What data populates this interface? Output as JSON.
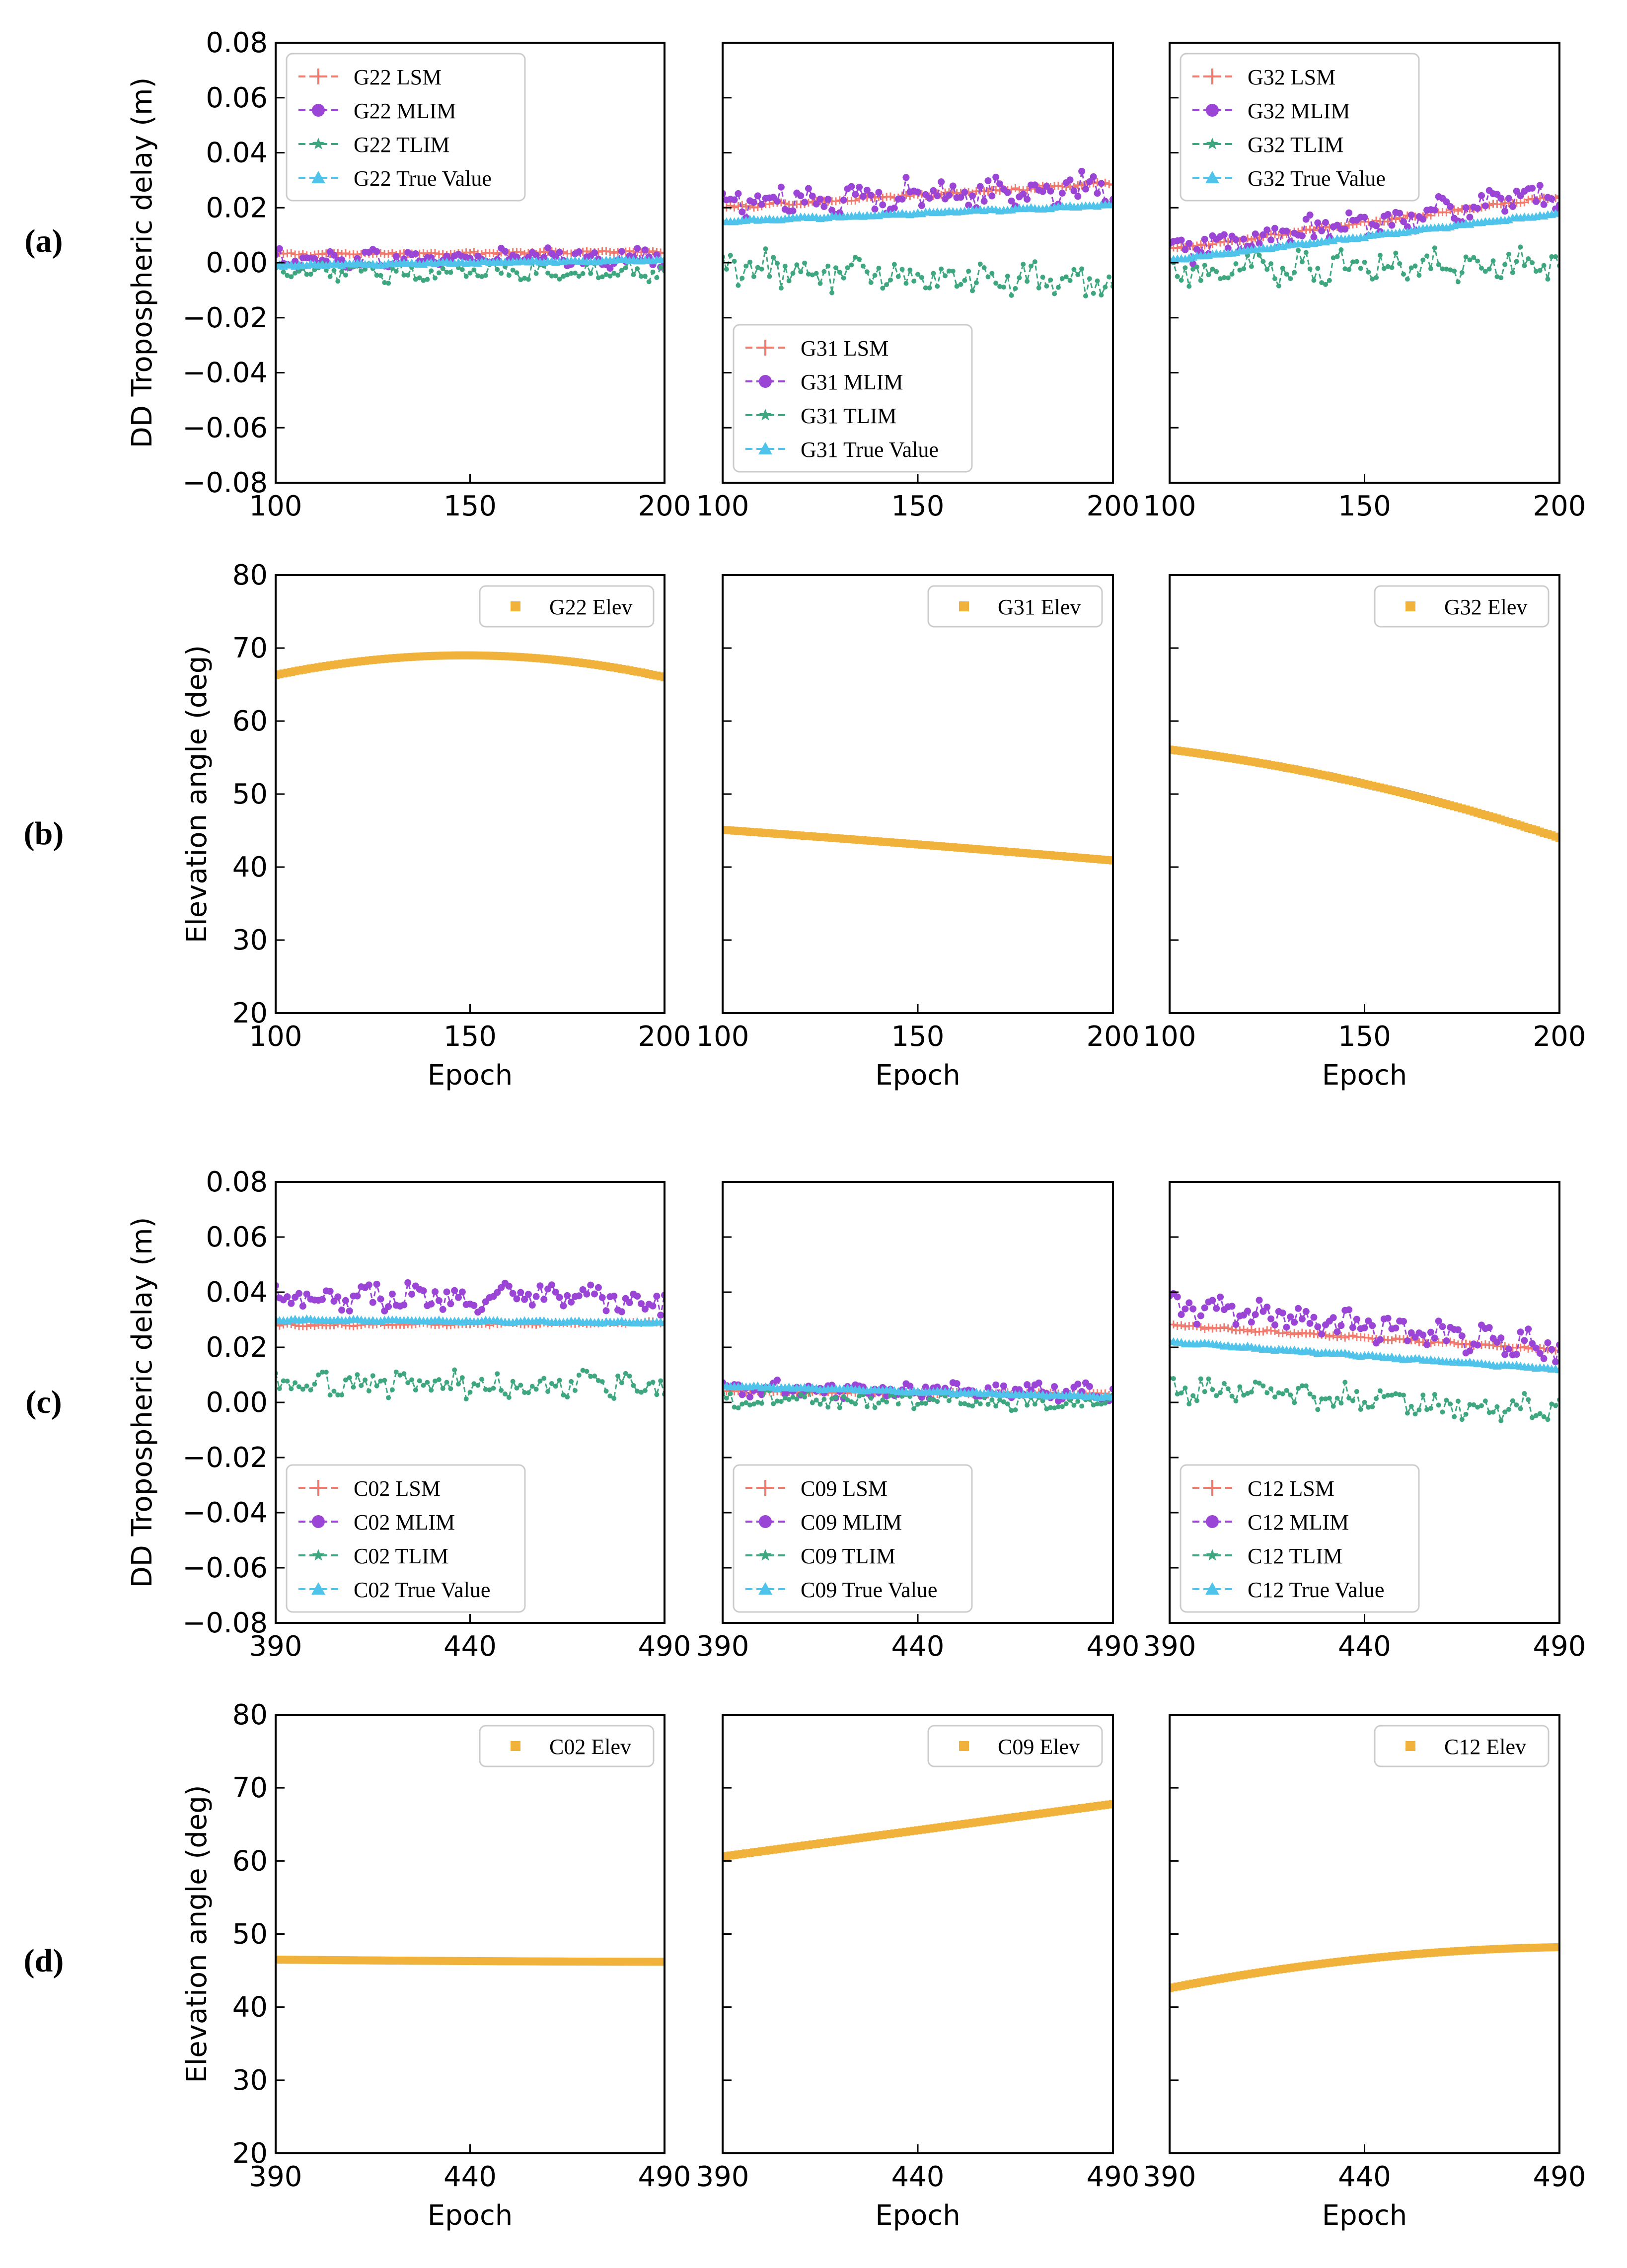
{
  "panel_labels": [
    "(a)",
    "(b)",
    "(c)",
    "(d)"
  ],
  "colors": {
    "LSM": "#f07a6e",
    "MLIM": "#9b45d6",
    "TLIM": "#3fa77f",
    "TRUE": "#4fc3ea",
    "ELEV": "#f0b23a"
  },
  "axes_text": {
    "ylabel_delay": "DD Tropospheric delay (m)",
    "ylabel_elev": "Elevation angle (deg)",
    "xlabel": "Epoch"
  },
  "chart_data": [
    {
      "id": "G22-delay",
      "type": "line",
      "row": "a",
      "col": 0,
      "xlim": [
        100,
        200
      ],
      "ylim": [
        -0.08,
        0.08
      ],
      "xticks": [
        "100",
        "150",
        "200"
      ],
      "yticks": [
        "−0.08",
        "−0.06",
        "−0.04",
        "−0.02",
        "0.00",
        "0.02",
        "0.04",
        "0.06",
        "0.08"
      ],
      "legend_loc": "upper-left",
      "series": [
        {
          "name": "G22 LSM",
          "key": "LSM",
          "start": 0.003,
          "end": 0.004,
          "noise": 0.0004
        },
        {
          "name": "G22 MLIM",
          "key": "MLIM",
          "start": 0.001,
          "end": 0.002,
          "noise": 0.0028
        },
        {
          "name": "G22 TLIM",
          "key": "TLIM",
          "start": -0.004,
          "end": -0.003,
          "noise": 0.0028
        },
        {
          "name": "G22 True Value",
          "key": "TRUE",
          "start": -0.001,
          "end": 0.001,
          "noise": 0.0003
        }
      ]
    },
    {
      "id": "G31-delay",
      "type": "line",
      "row": "a",
      "col": 1,
      "xlim": [
        100,
        200
      ],
      "ylim": [
        -0.08,
        0.08
      ],
      "xticks": [
        "100",
        "150",
        "200"
      ],
      "legend_loc": "lower-left",
      "series": [
        {
          "name": "G31 LSM",
          "key": "LSM",
          "start": 0.02,
          "end": 0.029,
          "noise": 0.0005
        },
        {
          "name": "G31 MLIM",
          "key": "MLIM",
          "start": 0.022,
          "end": 0.027,
          "noise": 0.0045
        },
        {
          "name": "G31 TLIM",
          "key": "TLIM",
          "start": -0.002,
          "end": -0.008,
          "noise": 0.0055
        },
        {
          "name": "G31 True Value",
          "key": "TRUE",
          "start": 0.015,
          "end": 0.021,
          "noise": 0.0003
        }
      ]
    },
    {
      "id": "G32-delay",
      "type": "line",
      "row": "a",
      "col": 2,
      "xlim": [
        100,
        200
      ],
      "ylim": [
        -0.08,
        0.08
      ],
      "xticks": [
        "100",
        "150",
        "200"
      ],
      "legend_loc": "upper-left",
      "series": [
        {
          "name": "G32 LSM",
          "key": "LSM",
          "start": 0.005,
          "end": 0.024,
          "noise": 0.0005
        },
        {
          "name": "G32 MLIM",
          "key": "MLIM",
          "start": 0.004,
          "end": 0.025,
          "noise": 0.004
        },
        {
          "name": "G32 TLIM",
          "key": "TLIM",
          "start": -0.003,
          "end": 0.0,
          "noise": 0.0045
        },
        {
          "name": "G32 True Value",
          "key": "TRUE",
          "start": 0.001,
          "end": 0.018,
          "noise": 0.0003
        }
      ]
    },
    {
      "id": "G22-elev",
      "type": "scatter",
      "row": "b",
      "col": 0,
      "xlim": [
        100,
        200
      ],
      "ylim": [
        20,
        80
      ],
      "xticks": [
        "100",
        "150",
        "200"
      ],
      "yticks": [
        "20",
        "30",
        "40",
        "50",
        "60",
        "70",
        "80"
      ],
      "legend_loc": "upper-right",
      "series": [
        {
          "name": "G22 Elev",
          "key": "ELEV",
          "x": [
            100,
            150,
            200
          ],
          "y": [
            66.3,
            69.0,
            66.0
          ]
        }
      ]
    },
    {
      "id": "G31-elev",
      "type": "scatter",
      "row": "b",
      "col": 1,
      "xlim": [
        100,
        200
      ],
      "ylim": [
        20,
        80
      ],
      "xticks": [
        "100",
        "150",
        "200"
      ],
      "legend_loc": "upper-right",
      "series": [
        {
          "name": "G31 Elev",
          "key": "ELEV",
          "x": [
            100,
            150,
            200
          ],
          "y": [
            45.1,
            43.1,
            40.9
          ]
        }
      ]
    },
    {
      "id": "G32-elev",
      "type": "scatter",
      "row": "b",
      "col": 2,
      "xlim": [
        100,
        200
      ],
      "ylim": [
        20,
        80
      ],
      "xticks": [
        "100",
        "150",
        "200"
      ],
      "legend_loc": "upper-right",
      "series": [
        {
          "name": "G32 Elev",
          "key": "ELEV",
          "x": [
            100,
            150,
            200
          ],
          "y": [
            56.1,
            51.4,
            44.0
          ]
        }
      ]
    },
    {
      "id": "C02-delay",
      "type": "line",
      "row": "c",
      "col": 0,
      "xlim": [
        390,
        490
      ],
      "ylim": [
        -0.08,
        0.08
      ],
      "xticks": [
        "390",
        "440",
        "490"
      ],
      "yticks": [
        "−0.08",
        "−0.06",
        "−0.04",
        "−0.02",
        "0.00",
        "0.02",
        "0.04",
        "0.06",
        "0.08"
      ],
      "legend_loc": "lower-left",
      "series": [
        {
          "name": "C02 LSM",
          "key": "LSM",
          "start": 0.028,
          "end": 0.029,
          "noise": 0.0004
        },
        {
          "name": "C02 MLIM",
          "key": "MLIM",
          "start": 0.039,
          "end": 0.037,
          "noise": 0.004
        },
        {
          "name": "C02 TLIM",
          "key": "TLIM",
          "start": 0.007,
          "end": 0.006,
          "noise": 0.004
        },
        {
          "name": "C02 True Value",
          "key": "TRUE",
          "start": 0.03,
          "end": 0.029,
          "noise": 0.0003
        }
      ]
    },
    {
      "id": "C09-delay",
      "type": "line",
      "row": "c",
      "col": 1,
      "xlim": [
        390,
        490
      ],
      "ylim": [
        -0.08,
        0.08
      ],
      "xticks": [
        "390",
        "440",
        "490"
      ],
      "legend_loc": "lower-left",
      "series": [
        {
          "name": "C09 LSM",
          "key": "LSM",
          "start": 0.004,
          "end": 0.003,
          "noise": 0.0004
        },
        {
          "name": "C09 MLIM",
          "key": "MLIM",
          "start": 0.005,
          "end": 0.004,
          "noise": 0.0025
        },
        {
          "name": "C09 TLIM",
          "key": "TLIM",
          "start": 0.001,
          "end": 0.0,
          "noise": 0.0025
        },
        {
          "name": "C09 True Value",
          "key": "TRUE",
          "start": 0.006,
          "end": 0.002,
          "noise": 0.0003
        }
      ]
    },
    {
      "id": "C12-delay",
      "type": "line",
      "row": "c",
      "col": 2,
      "xlim": [
        390,
        490
      ],
      "ylim": [
        -0.08,
        0.08
      ],
      "xticks": [
        "390",
        "440",
        "490"
      ],
      "legend_loc": "lower-left",
      "series": [
        {
          "name": "C12 LSM",
          "key": "LSM",
          "start": 0.028,
          "end": 0.019,
          "noise": 0.0004
        },
        {
          "name": "C12 MLIM",
          "key": "MLIM",
          "start": 0.035,
          "end": 0.02,
          "noise": 0.004
        },
        {
          "name": "C12 TLIM",
          "key": "TLIM",
          "start": 0.005,
          "end": -0.003,
          "noise": 0.004
        },
        {
          "name": "C12 True Value",
          "key": "TRUE",
          "start": 0.022,
          "end": 0.012,
          "noise": 0.0003
        }
      ]
    },
    {
      "id": "C02-elev",
      "type": "scatter",
      "row": "d",
      "col": 0,
      "xlim": [
        390,
        490
      ],
      "ylim": [
        20,
        80
      ],
      "xticks": [
        "390",
        "440",
        "490"
      ],
      "yticks": [
        "20",
        "30",
        "40",
        "50",
        "60",
        "70",
        "80"
      ],
      "legend_loc": "upper-right",
      "series": [
        {
          "name": "C02 Elev",
          "key": "ELEV",
          "x": [
            390,
            440,
            490
          ],
          "y": [
            46.5,
            46.3,
            46.2
          ]
        }
      ]
    },
    {
      "id": "C09-elev",
      "type": "scatter",
      "row": "d",
      "col": 1,
      "xlim": [
        390,
        490
      ],
      "ylim": [
        20,
        80
      ],
      "xticks": [
        "390",
        "440",
        "490"
      ],
      "legend_loc": "upper-right",
      "series": [
        {
          "name": "C09 Elev",
          "key": "ELEV",
          "x": [
            390,
            440,
            490
          ],
          "y": [
            60.6,
            64.2,
            67.8
          ]
        }
      ]
    },
    {
      "id": "C12-elev",
      "type": "scatter",
      "row": "d",
      "col": 2,
      "xlim": [
        390,
        490
      ],
      "ylim": [
        20,
        80
      ],
      "xticks": [
        "390",
        "440",
        "490"
      ],
      "legend_loc": "upper-right",
      "series": [
        {
          "name": "C12 Elev",
          "key": "ELEV",
          "x": [
            390,
            440,
            490
          ],
          "y": [
            42.6,
            46.6,
            48.2
          ]
        }
      ]
    }
  ]
}
